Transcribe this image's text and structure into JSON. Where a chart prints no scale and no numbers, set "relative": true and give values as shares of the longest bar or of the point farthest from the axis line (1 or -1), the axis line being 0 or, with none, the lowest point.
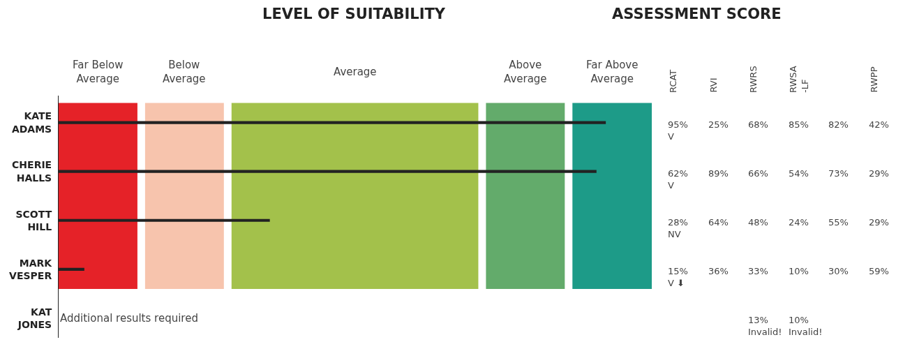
{
  "chart_data": [
    {
      "type": "bar",
      "title": "LEVEL OF SUITABILITY",
      "orientation": "horizontal",
      "relative": true,
      "categories": [
        "KATE\nADAMS",
        "CHERIE\nHALLS",
        "SCOTT\nHILL",
        "MARK\nVESPER",
        "KAT\nJONES"
      ],
      "values": [
        1,
        0.983,
        0.386,
        0.047,
        null
      ],
      "color": "#222222",
      "bands": [
        {
          "axis": "x",
          "from": 0,
          "to": 0.144,
          "label": "Far Below\nAverage",
          "color": "#e52228"
        },
        {
          "axis": "x",
          "from": 0.158,
          "to": 0.302,
          "label": "Below\nAverage",
          "color": "#f7c4ad"
        },
        {
          "axis": "x",
          "from": 0.316,
          "to": 0.767,
          "label": "Average",
          "color": "#a3c14b"
        },
        {
          "axis": "x",
          "from": 0.781,
          "to": 0.925,
          "label": "Above\nAverage",
          "color": "#63ab6b"
        },
        {
          "axis": "x",
          "from": 0.939,
          "to": 1.084,
          "label": "Far Above\nAverage",
          "color": "#1d9b88"
        }
      ],
      "annotations": [
        "Additional results required"
      ],
      "grid": false,
      "legend": false
    },
    {
      "type": "other",
      "title": "ASSESSMENT SCORE",
      "categories": [
        "RCAT",
        "RVI",
        "RWRS",
        "RWSA\n-LF",
        null,
        "RWPP"
      ],
      "cell_labels": [
        [
          "95%\nV",
          "25%",
          "68%",
          "85%",
          "82%",
          "42%"
        ],
        [
          "62%\nV",
          "89%",
          "66%",
          "54%",
          "73%",
          "29%"
        ],
        [
          "28%\nNV",
          "64%",
          "48%",
          "24%",
          "55%",
          "29%"
        ],
        [
          "15%\nV ⬇",
          "36%",
          "33%",
          "10%",
          "30%",
          "59%"
        ],
        [
          null,
          null,
          "13%\nInvalid!",
          "10%\nInvalid!",
          null,
          null
        ]
      ]
    }
  ]
}
